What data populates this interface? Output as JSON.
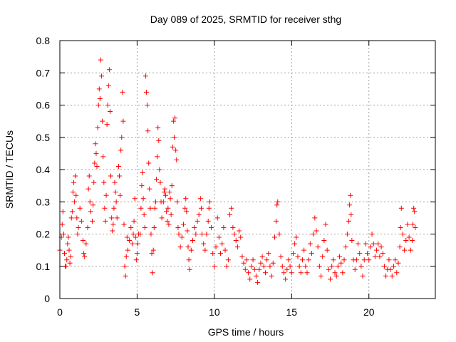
{
  "chart_data": {
    "type": "scatter",
    "title": "Day 089 of 2025, SRMTID for receiver sthg",
    "xlabel": "GPS time / hours",
    "ylabel": "SRMTID / TECUs",
    "xlim": [
      0,
      24.3
    ],
    "ylim": [
      0,
      0.8
    ],
    "xticks": [
      0,
      5,
      10,
      15,
      20
    ],
    "xtick_labels": [
      "0",
      "5",
      "10",
      "15",
      "20"
    ],
    "yticks": [
      0,
      0.1,
      0.2,
      0.3,
      0.4,
      0.5,
      0.6,
      0.7,
      0.8
    ],
    "ytick_labels": [
      "0",
      "0.1",
      "0.2",
      "0.3",
      "0.4",
      "0.5",
      "0.6",
      "0.7",
      "0.8"
    ],
    "grid": true,
    "marker": "+",
    "color": "#ff0000",
    "series": [
      {
        "name": "SRMTID",
        "points": [
          [
            0.0,
            0.15
          ],
          [
            0.1,
            0.19
          ],
          [
            0.15,
            0.23
          ],
          [
            0.2,
            0.27
          ],
          [
            0.25,
            0.2
          ],
          [
            0.3,
            0.14
          ],
          [
            0.35,
            0.1
          ],
          [
            0.4,
            0.1
          ],
          [
            0.45,
            0.12
          ],
          [
            0.5,
            0.17
          ],
          [
            0.55,
            0.19
          ],
          [
            0.6,
            0.15
          ],
          [
            0.65,
            0.11
          ],
          [
            0.7,
            0.13
          ],
          [
            0.75,
            0.25
          ],
          [
            0.8,
            0.27
          ],
          [
            0.85,
            0.33
          ],
          [
            0.9,
            0.36
          ],
          [
            0.95,
            0.3
          ],
          [
            1.0,
            0.38
          ],
          [
            1.05,
            0.32
          ],
          [
            1.1,
            0.25
          ],
          [
            1.15,
            0.2
          ],
          [
            1.2,
            0.22
          ],
          [
            1.3,
            0.28
          ],
          [
            1.4,
            0.24
          ],
          [
            1.5,
            0.18
          ],
          [
            1.55,
            0.14
          ],
          [
            1.6,
            0.13
          ],
          [
            1.7,
            0.17
          ],
          [
            1.8,
            0.22
          ],
          [
            1.85,
            0.34
          ],
          [
            1.9,
            0.38
          ],
          [
            1.95,
            0.3
          ],
          [
            2.0,
            0.27
          ],
          [
            2.1,
            0.24
          ],
          [
            2.15,
            0.29
          ],
          [
            2.2,
            0.36
          ],
          [
            2.25,
            0.42
          ],
          [
            2.3,
            0.48
          ],
          [
            2.35,
            0.45
          ],
          [
            2.4,
            0.41
          ],
          [
            2.45,
            0.53
          ],
          [
            2.5,
            0.6
          ],
          [
            2.55,
            0.65
          ],
          [
            2.6,
            0.62
          ],
          [
            2.65,
            0.74
          ],
          [
            2.7,
            0.69
          ],
          [
            2.75,
            0.55
          ],
          [
            2.8,
            0.44
          ],
          [
            2.85,
            0.36
          ],
          [
            2.9,
            0.28
          ],
          [
            2.95,
            0.24
          ],
          [
            3.0,
            0.32
          ],
          [
            3.05,
            0.54
          ],
          [
            3.1,
            0.6
          ],
          [
            3.15,
            0.66
          ],
          [
            3.2,
            0.71
          ],
          [
            3.25,
            0.58
          ],
          [
            3.3,
            0.38
          ],
          [
            3.35,
            0.25
          ],
          [
            3.4,
            0.21
          ],
          [
            3.45,
            0.23
          ],
          [
            3.5,
            0.28
          ],
          [
            3.55,
            0.36
          ],
          [
            3.6,
            0.33
          ],
          [
            3.65,
            0.3
          ],
          [
            3.7,
            0.25
          ],
          [
            3.8,
            0.41
          ],
          [
            3.85,
            0.38
          ],
          [
            3.9,
            0.32
          ],
          [
            3.95,
            0.46
          ],
          [
            4.0,
            0.5
          ],
          [
            4.05,
            0.64
          ],
          [
            4.1,
            0.55
          ],
          [
            4.15,
            0.23
          ],
          [
            4.2,
            0.1
          ],
          [
            4.25,
            0.07
          ],
          [
            4.3,
            0.13
          ],
          [
            4.35,
            0.19
          ],
          [
            4.4,
            0.15
          ],
          [
            4.5,
            0.18
          ],
          [
            4.6,
            0.22
          ],
          [
            4.7,
            0.17
          ],
          [
            4.75,
            0.2
          ],
          [
            4.8,
            0.24
          ],
          [
            4.85,
            0.31
          ],
          [
            4.9,
            0.19
          ],
          [
            4.95,
            0.12
          ],
          [
            5.0,
            0.14
          ],
          [
            5.05,
            0.17
          ],
          [
            5.1,
            0.2
          ],
          [
            5.2,
            0.2
          ],
          [
            5.25,
            0.28
          ],
          [
            5.3,
            0.35
          ],
          [
            5.35,
            0.39
          ],
          [
            5.4,
            0.31
          ],
          [
            5.45,
            0.26
          ],
          [
            5.5,
            0.22
          ],
          [
            5.55,
            0.69
          ],
          [
            5.6,
            0.64
          ],
          [
            5.65,
            0.6
          ],
          [
            5.7,
            0.52
          ],
          [
            5.75,
            0.42
          ],
          [
            5.8,
            0.34
          ],
          [
            5.85,
            0.28
          ],
          [
            5.9,
            0.2
          ],
          [
            5.95,
            0.14
          ],
          [
            6.0,
            0.08
          ],
          [
            6.05,
            0.15
          ],
          [
            6.1,
            0.22
          ],
          [
            6.15,
            0.28
          ],
          [
            6.2,
            0.3
          ],
          [
            6.25,
            0.37
          ],
          [
            6.3,
            0.44
          ],
          [
            6.35,
            0.53
          ],
          [
            6.4,
            0.49
          ],
          [
            6.45,
            0.4
          ],
          [
            6.5,
            0.36
          ],
          [
            6.55,
            0.3
          ],
          [
            6.6,
            0.25
          ],
          [
            6.7,
            0.3
          ],
          [
            6.75,
            0.33
          ],
          [
            6.8,
            0.34
          ],
          [
            6.85,
            0.32
          ],
          [
            6.9,
            0.27
          ],
          [
            6.95,
            0.24
          ],
          [
            7.0,
            0.28
          ],
          [
            7.05,
            0.23
          ],
          [
            7.1,
            0.33
          ],
          [
            7.15,
            0.31
          ],
          [
            7.2,
            0.26
          ],
          [
            7.25,
            0.35
          ],
          [
            7.3,
            0.47
          ],
          [
            7.35,
            0.55
          ],
          [
            7.4,
            0.5
          ],
          [
            7.45,
            0.56
          ],
          [
            7.5,
            0.46
          ],
          [
            7.55,
            0.43
          ],
          [
            7.6,
            0.3
          ],
          [
            7.65,
            0.22
          ],
          [
            7.7,
            0.2
          ],
          [
            7.8,
            0.16
          ],
          [
            7.9,
            0.19
          ],
          [
            8.0,
            0.23
          ],
          [
            8.1,
            0.28
          ],
          [
            8.15,
            0.31
          ],
          [
            8.2,
            0.27
          ],
          [
            8.25,
            0.21
          ],
          [
            8.3,
            0.16
          ],
          [
            8.35,
            0.12
          ],
          [
            8.4,
            0.09
          ],
          [
            8.5,
            0.15
          ],
          [
            8.6,
            0.18
          ],
          [
            8.7,
            0.22
          ],
          [
            8.8,
            0.2
          ],
          [
            8.9,
            0.24
          ],
          [
            9.0,
            0.26
          ],
          [
            9.1,
            0.31
          ],
          [
            9.15,
            0.28
          ],
          [
            9.2,
            0.2
          ],
          [
            9.3,
            0.17
          ],
          [
            9.4,
            0.15
          ],
          [
            9.5,
            0.2
          ],
          [
            9.6,
            0.24
          ],
          [
            9.65,
            0.28
          ],
          [
            9.7,
            0.3
          ],
          [
            9.8,
            0.22
          ],
          [
            9.9,
            0.14
          ],
          [
            10.0,
            0.1
          ],
          [
            10.1,
            0.16
          ],
          [
            10.2,
            0.25
          ],
          [
            10.3,
            0.19
          ],
          [
            10.4,
            0.14
          ],
          [
            10.5,
            0.17
          ],
          [
            10.6,
            0.22
          ],
          [
            10.7,
            0.15
          ],
          [
            10.8,
            0.1
          ],
          [
            10.9,
            0.12
          ],
          [
            11.0,
            0.26
          ],
          [
            11.1,
            0.28
          ],
          [
            11.2,
            0.22
          ],
          [
            11.3,
            0.2
          ],
          [
            11.4,
            0.18
          ],
          [
            11.5,
            0.16
          ],
          [
            11.6,
            0.21
          ],
          [
            11.7,
            0.19
          ],
          [
            11.8,
            0.13
          ],
          [
            11.9,
            0.11
          ],
          [
            12.0,
            0.09
          ],
          [
            12.1,
            0.12
          ],
          [
            12.2,
            0.08
          ],
          [
            12.3,
            0.06
          ],
          [
            12.4,
            0.1
          ],
          [
            12.5,
            0.12
          ],
          [
            12.6,
            0.09
          ],
          [
            12.7,
            0.07
          ],
          [
            12.8,
            0.05
          ],
          [
            12.9,
            0.09
          ],
          [
            13.0,
            0.11
          ],
          [
            13.1,
            0.13
          ],
          [
            13.2,
            0.1
          ],
          [
            13.3,
            0.08
          ],
          [
            13.4,
            0.12
          ],
          [
            13.5,
            0.14
          ],
          [
            13.6,
            0.1
          ],
          [
            13.7,
            0.07
          ],
          [
            13.8,
            0.11
          ],
          [
            13.9,
            0.19
          ],
          [
            14.0,
            0.24
          ],
          [
            14.05,
            0.29
          ],
          [
            14.1,
            0.3
          ],
          [
            14.2,
            0.2
          ],
          [
            14.3,
            0.13
          ],
          [
            14.4,
            0.1
          ],
          [
            14.5,
            0.08
          ],
          [
            14.6,
            0.06
          ],
          [
            14.7,
            0.09
          ],
          [
            14.8,
            0.12
          ],
          [
            14.9,
            0.1
          ],
          [
            15.0,
            0.08
          ],
          [
            15.1,
            0.14
          ],
          [
            15.2,
            0.17
          ],
          [
            15.3,
            0.19
          ],
          [
            15.4,
            0.13
          ],
          [
            15.5,
            0.1
          ],
          [
            15.6,
            0.08
          ],
          [
            15.7,
            0.12
          ],
          [
            15.8,
            0.15
          ],
          [
            15.9,
            0.1
          ],
          [
            16.0,
            0.08
          ],
          [
            16.1,
            0.12
          ],
          [
            16.2,
            0.17
          ],
          [
            16.3,
            0.14
          ],
          [
            16.4,
            0.2
          ],
          [
            16.5,
            0.25
          ],
          [
            16.6,
            0.21
          ],
          [
            16.7,
            0.16
          ],
          [
            16.8,
            0.1
          ],
          [
            16.9,
            0.07
          ],
          [
            17.0,
            0.13
          ],
          [
            17.1,
            0.18
          ],
          [
            17.2,
            0.23
          ],
          [
            17.3,
            0.15
          ],
          [
            17.4,
            0.09
          ],
          [
            17.5,
            0.06
          ],
          [
            17.6,
            0.1
          ],
          [
            17.7,
            0.12
          ],
          [
            17.8,
            0.08
          ],
          [
            17.9,
            0.07
          ],
          [
            18.0,
            0.1
          ],
          [
            18.1,
            0.13
          ],
          [
            18.2,
            0.11
          ],
          [
            18.3,
            0.08
          ],
          [
            18.4,
            0.12
          ],
          [
            18.5,
            0.16
          ],
          [
            18.6,
            0.2
          ],
          [
            18.7,
            0.24
          ],
          [
            18.75,
            0.29
          ],
          [
            18.8,
            0.32
          ],
          [
            18.85,
            0.26
          ],
          [
            18.9,
            0.18
          ],
          [
            19.0,
            0.12
          ],
          [
            19.1,
            0.09
          ],
          [
            19.2,
            0.12
          ],
          [
            19.3,
            0.17
          ],
          [
            19.4,
            0.14
          ],
          [
            19.5,
            0.1
          ],
          [
            19.6,
            0.07
          ],
          [
            19.7,
            0.12
          ],
          [
            19.8,
            0.17
          ],
          [
            19.9,
            0.14
          ],
          [
            20.0,
            0.12
          ],
          [
            20.1,
            0.16
          ],
          [
            20.2,
            0.2
          ],
          [
            20.3,
            0.17
          ],
          [
            20.4,
            0.13
          ],
          [
            20.5,
            0.15
          ],
          [
            20.6,
            0.17
          ],
          [
            20.7,
            0.13
          ],
          [
            20.8,
            0.16
          ],
          [
            20.9,
            0.14
          ],
          [
            21.0,
            0.1
          ],
          [
            21.1,
            0.07
          ],
          [
            21.2,
            0.09
          ],
          [
            21.3,
            0.12
          ],
          [
            21.4,
            0.09
          ],
          [
            21.5,
            0.07
          ],
          [
            21.6,
            0.1
          ],
          [
            21.7,
            0.12
          ],
          [
            21.8,
            0.08
          ],
          [
            21.9,
            0.11
          ],
          [
            22.0,
            0.16
          ],
          [
            22.05,
            0.22
          ],
          [
            22.1,
            0.28
          ],
          [
            22.2,
            0.2
          ],
          [
            22.3,
            0.15
          ],
          [
            22.4,
            0.18
          ],
          [
            22.5,
            0.23
          ],
          [
            22.6,
            0.19
          ],
          [
            22.7,
            0.15
          ],
          [
            22.8,
            0.18
          ],
          [
            22.85,
            0.23
          ],
          [
            22.9,
            0.28
          ],
          [
            22.95,
            0.27
          ],
          [
            23.0,
            0.22
          ]
        ]
      }
    ]
  }
}
